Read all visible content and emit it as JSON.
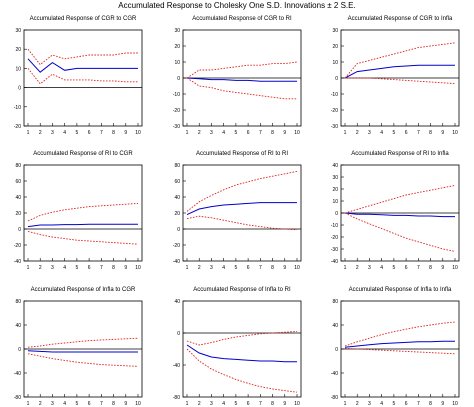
{
  "figure_title": "Accumulated Response to Cholesky One S.D. Innovations ± 2 S.E.",
  "colors": {
    "response": "#0000cc",
    "band": "#e02020",
    "zero": "#000000",
    "axis": "#000000"
  },
  "chart_data": [
    {
      "type": "line",
      "title": "Accumulated Response of CGR to CGR",
      "x": [
        1,
        2,
        3,
        4,
        5,
        6,
        7,
        8,
        9,
        10
      ],
      "xticks": [
        "1",
        "2",
        "3",
        "4",
        "5",
        "6",
        "7",
        "8",
        "9",
        "10"
      ],
      "ylim": [
        -20,
        30
      ],
      "yticks": [
        -20,
        -10,
        0,
        10,
        20,
        30
      ],
      "series": [
        {
          "role": "response",
          "values": [
            15,
            8,
            13,
            9,
            10,
            10,
            10,
            10,
            10,
            10
          ]
        },
        {
          "role": "upper",
          "values": [
            20,
            12,
            17,
            15,
            16,
            17,
            17,
            17,
            18,
            18
          ]
        },
        {
          "role": "lower",
          "values": [
            10,
            2,
            7,
            4,
            4,
            4,
            3.5,
            3.5,
            3,
            3
          ]
        }
      ]
    },
    {
      "type": "line",
      "title": "Accumulated Response of CGR to RI",
      "x": [
        1,
        2,
        3,
        4,
        5,
        6,
        7,
        8,
        9,
        10
      ],
      "xticks": [
        "1",
        "2",
        "3",
        "4",
        "5",
        "6",
        "7",
        "8",
        "9",
        "10"
      ],
      "ylim": [
        -30,
        30
      ],
      "yticks": [
        -30,
        -20,
        -10,
        0,
        10,
        20,
        30
      ],
      "series": [
        {
          "role": "response",
          "values": [
            0,
            -0.5,
            -1,
            -1,
            -1.5,
            -1.5,
            -2,
            -2,
            -2,
            -2
          ]
        },
        {
          "role": "upper",
          "values": [
            0,
            5,
            5,
            6,
            7,
            8,
            8,
            9,
            9,
            10
          ]
        },
        {
          "role": "lower",
          "values": [
            0,
            -5,
            -6,
            -8,
            -9,
            -10,
            -11,
            -12,
            -13,
            -13
          ]
        }
      ]
    },
    {
      "type": "line",
      "title": "Accumulated Response of CGR to Infla",
      "x": [
        1,
        2,
        3,
        4,
        5,
        6,
        7,
        8,
        9,
        10
      ],
      "xticks": [
        "1",
        "2",
        "3",
        "4",
        "5",
        "6",
        "7",
        "8",
        "9",
        "10"
      ],
      "ylim": [
        -30,
        30
      ],
      "yticks": [
        -30,
        -20,
        -10,
        0,
        10,
        20,
        30
      ],
      "series": [
        {
          "role": "response",
          "values": [
            0,
            4,
            5,
            6,
            7,
            7.5,
            8,
            8,
            8,
            8
          ]
        },
        {
          "role": "upper",
          "values": [
            0,
            9,
            11,
            13,
            15,
            17,
            19,
            20,
            21,
            22
          ]
        },
        {
          "role": "lower",
          "values": [
            0,
            0,
            0,
            -0.5,
            -1,
            -1.5,
            -2,
            -2.5,
            -3,
            -3.5
          ]
        }
      ]
    },
    {
      "type": "line",
      "title": "Accumulated Response of RI to CGR",
      "x": [
        1,
        2,
        3,
        4,
        5,
        6,
        7,
        8,
        9,
        10
      ],
      "xticks": [
        "1",
        "2",
        "3",
        "4",
        "5",
        "6",
        "7",
        "8",
        "9",
        "10"
      ],
      "ylim": [
        -40,
        80
      ],
      "yticks": [
        -40,
        -20,
        0,
        20,
        40,
        60,
        80
      ],
      "series": [
        {
          "role": "response",
          "values": [
            3,
            5,
            5,
            5.5,
            5.5,
            6,
            6,
            6,
            6,
            6
          ]
        },
        {
          "role": "upper",
          "values": [
            10,
            17,
            21,
            24,
            26,
            28,
            29,
            30,
            31,
            32
          ]
        },
        {
          "role": "lower",
          "values": [
            -3,
            -7,
            -10,
            -12,
            -14,
            -15,
            -16,
            -17,
            -18,
            -19
          ]
        }
      ]
    },
    {
      "type": "line",
      "title": "Accumulated Response of RI to RI",
      "x": [
        1,
        2,
        3,
        4,
        5,
        6,
        7,
        8,
        9,
        10
      ],
      "xticks": [
        "1",
        "2",
        "3",
        "4",
        "5",
        "6",
        "7",
        "8",
        "9",
        "10"
      ],
      "ylim": [
        -40,
        80
      ],
      "yticks": [
        -40,
        -20,
        0,
        20,
        40,
        60,
        80
      ],
      "series": [
        {
          "role": "response",
          "values": [
            18,
            25,
            28,
            30,
            31,
            32,
            33,
            33,
            33,
            33
          ]
        },
        {
          "role": "upper",
          "values": [
            22,
            34,
            42,
            49,
            55,
            59,
            63,
            66,
            69,
            72
          ]
        },
        {
          "role": "lower",
          "values": [
            13,
            16,
            14,
            11,
            8,
            5,
            3,
            1,
            0,
            -1
          ]
        }
      ]
    },
    {
      "type": "line",
      "title": "Accumulated Response of RI to Infla",
      "x": [
        1,
        2,
        3,
        4,
        5,
        6,
        7,
        8,
        9,
        10
      ],
      "xticks": [
        "1",
        "2",
        "3",
        "4",
        "5",
        "6",
        "7",
        "8",
        "9",
        "10"
      ],
      "ylim": [
        -40,
        40
      ],
      "yticks": [
        -40,
        -30,
        -20,
        -10,
        0,
        10,
        20,
        30,
        40
      ],
      "series": [
        {
          "role": "response",
          "values": [
            0,
            -1,
            -1,
            -1.5,
            -2,
            -2,
            -2.5,
            -2.5,
            -3,
            -3
          ]
        },
        {
          "role": "upper",
          "values": [
            0,
            3,
            6,
            9,
            12,
            15,
            17,
            19,
            21,
            23
          ]
        },
        {
          "role": "lower",
          "values": [
            0,
            -5,
            -9,
            -13,
            -17,
            -21,
            -24,
            -27,
            -30,
            -32
          ]
        }
      ]
    },
    {
      "type": "line",
      "title": "Accumulated Response of Infla to CGR",
      "x": [
        1,
        2,
        3,
        4,
        5,
        6,
        7,
        8,
        9,
        10
      ],
      "xticks": [
        "1",
        "2",
        "3",
        "4",
        "5",
        "6",
        "7",
        "8",
        "9",
        "10"
      ],
      "ylim": [
        -80,
        80
      ],
      "yticks": [
        -80,
        -40,
        0,
        40,
        80
      ],
      "series": [
        {
          "role": "response",
          "values": [
            -3,
            -4,
            -5,
            -5,
            -5,
            -5,
            -5,
            -5,
            -5,
            -5
          ]
        },
        {
          "role": "upper",
          "values": [
            3,
            5,
            8,
            10,
            12,
            14,
            15,
            16,
            17,
            18
          ]
        },
        {
          "role": "lower",
          "values": [
            -8,
            -12,
            -16,
            -19,
            -22,
            -24,
            -26,
            -27,
            -28,
            -29
          ]
        }
      ]
    },
    {
      "type": "line",
      "title": "Accumulated Response of Infla to RI",
      "x": [
        1,
        2,
        3,
        4,
        5,
        6,
        7,
        8,
        9,
        10
      ],
      "xticks": [
        "1",
        "2",
        "3",
        "4",
        "5",
        "6",
        "7",
        "8",
        "9",
        "10"
      ],
      "ylim": [
        -80,
        40
      ],
      "yticks": [
        -80,
        -40,
        0,
        40
      ],
      "series": [
        {
          "role": "response",
          "values": [
            -15,
            -25,
            -30,
            -32,
            -33,
            -34,
            -35,
            -35,
            -36,
            -36
          ]
        },
        {
          "role": "upper",
          "values": [
            -10,
            -15,
            -12,
            -8,
            -5,
            -3,
            -1,
            0,
            1,
            2
          ]
        },
        {
          "role": "lower",
          "values": [
            -20,
            -35,
            -45,
            -52,
            -58,
            -63,
            -67,
            -70,
            -72,
            -74
          ]
        }
      ]
    },
    {
      "type": "line",
      "title": "Accumulated Response of Infla to Infla",
      "x": [
        1,
        2,
        3,
        4,
        5,
        6,
        7,
        8,
        9,
        10
      ],
      "xticks": [
        "1",
        "2",
        "3",
        "4",
        "5",
        "6",
        "7",
        "8",
        "9",
        "10"
      ],
      "ylim": [
        -80,
        80
      ],
      "yticks": [
        -80,
        -40,
        0,
        40,
        80
      ],
      "series": [
        {
          "role": "response",
          "values": [
            3,
            5,
            7,
            9,
            10,
            11,
            12,
            12,
            13,
            13
          ]
        },
        {
          "role": "upper",
          "values": [
            5,
            12,
            18,
            24,
            29,
            33,
            37,
            40,
            43,
            45
          ]
        },
        {
          "role": "lower",
          "values": [
            1,
            0,
            -1,
            -2,
            -3,
            -4,
            -5,
            -6,
            -7,
            -8
          ]
        }
      ]
    }
  ]
}
